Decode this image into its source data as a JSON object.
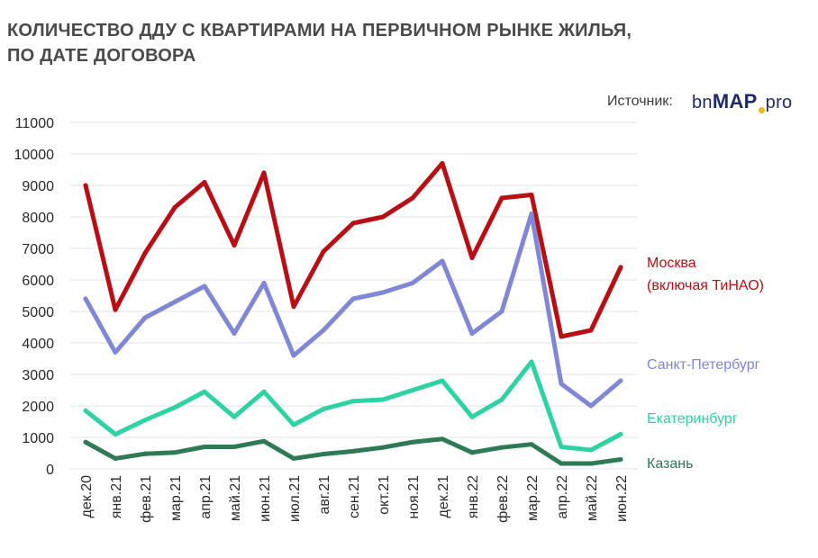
{
  "title_line1": "КОЛИЧЕСТВО ДДУ С КВАРТИРАМИ НА ПЕРВИЧНОМ РЫНКЕ ЖИЛЬЯ,",
  "title_line2": "ПО  ДАТЕ ДОГОВОРА",
  "source_label": "Источник:",
  "logo": {
    "part1": "bn",
    "part2": "MAP",
    "part3": "pro"
  },
  "chart_data": {
    "type": "line",
    "title": "КОЛИЧЕСТВО ДДУ С КВАРТИРАМИ НА ПЕРВИЧНОМ РЫНКЕ ЖИЛЬЯ, ПО  ДАТЕ ДОГОВОРА",
    "categories": [
      "дек.20",
      "янв.21",
      "фев.21",
      "мар.21",
      "апр.21",
      "май.21",
      "июн.21",
      "июл.21",
      "авг.21",
      "сен.21",
      "окт.21",
      "ноя.21",
      "дек.21",
      "янв.22",
      "фев.22",
      "мар.22",
      "апр.22",
      "май.22",
      "июн.22"
    ],
    "yticks": [
      "0",
      "1000",
      "2000",
      "3000",
      "4000",
      "5000",
      "6000",
      "7000",
      "8000",
      "9000",
      "10000",
      "11000"
    ],
    "ylim": [
      0,
      11000
    ],
    "grid": true,
    "legend_placement": "right",
    "series": [
      {
        "name_line1": "Москва",
        "name_line2": "(включая ТиНАО)",
        "color": "#b80e14",
        "values": [
          9000,
          5050,
          6850,
          8300,
          9100,
          7100,
          9400,
          5150,
          6900,
          7800,
          8000,
          8600,
          9700,
          6700,
          8600,
          8700,
          4200,
          4400,
          6400
        ]
      },
      {
        "name_line1": "Санкт-Петербург",
        "color": "#8087d6",
        "values": [
          5400,
          3700,
          4800,
          5300,
          5800,
          4300,
          5900,
          3600,
          4400,
          5400,
          5600,
          5900,
          6600,
          4300,
          5000,
          8100,
          2700,
          2000,
          2800
        ]
      },
      {
        "name_line1": "Екатеринбург",
        "color": "#2ed3a3",
        "values": [
          1850,
          1100,
          1550,
          1950,
          2450,
          1650,
          2450,
          1400,
          1900,
          2150,
          2200,
          2500,
          2800,
          1650,
          2200,
          3400,
          700,
          600,
          1100
        ]
      },
      {
        "name_line1": "Казань",
        "color": "#2e7a55",
        "values": [
          850,
          330,
          480,
          520,
          700,
          700,
          880,
          330,
          470,
          560,
          680,
          850,
          950,
          520,
          680,
          780,
          170,
          170,
          300
        ]
      }
    ]
  }
}
